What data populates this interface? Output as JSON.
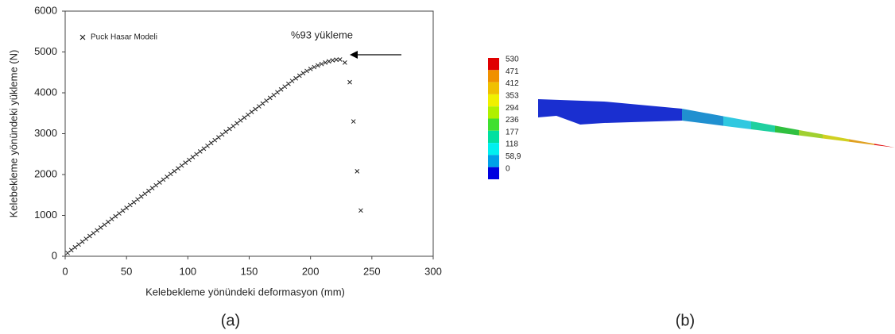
{
  "chart_data": [
    {
      "type": "scatter",
      "caption": "(a)",
      "x_label": "Kelebekleme yönündeki deformasyon (mm)",
      "y_label": "Kelebekleme yönündeki yükleme (N)",
      "annotation": "%93 yükleme",
      "xlim": [
        0,
        300
      ],
      "xticks": [
        0,
        50,
        100,
        150,
        200,
        250,
        300
      ],
      "ylim": [
        0,
        6000
      ],
      "yticks": [
        0,
        1000,
        2000,
        3000,
        4000,
        5000,
        6000
      ],
      "series": [
        {
          "name": "Puck Hasar Modeli",
          "color": "#222222",
          "x": [
            2,
            5,
            8,
            11,
            14,
            17,
            20,
            23,
            26,
            29,
            32,
            35,
            38,
            41,
            44,
            47,
            50,
            53,
            56,
            59,
            62,
            65,
            68,
            71,
            74,
            77,
            80,
            83,
            86,
            89,
            92,
            95,
            98,
            101,
            104,
            107,
            110,
            113,
            116,
            119,
            122,
            125,
            128,
            131,
            134,
            137,
            140,
            143,
            146,
            149,
            152,
            155,
            158,
            161,
            164,
            167,
            170,
            173,
            176,
            179,
            182,
            185,
            188,
            191,
            194,
            197,
            200,
            203,
            206,
            209,
            212,
            215,
            218,
            221,
            224,
            228,
            232,
            235,
            238,
            241
          ],
          "values": [
            81,
            150,
            219,
            288,
            357,
            426,
            495,
            564,
            633,
            702,
            771,
            840,
            909,
            978,
            1047,
            1116,
            1185,
            1254,
            1323,
            1392,
            1461,
            1530,
            1599,
            1668,
            1737,
            1806,
            1875,
            1944,
            2013,
            2082,
            2151,
            2220,
            2289,
            2358,
            2427,
            2496,
            2565,
            2634,
            2703,
            2772,
            2841,
            2910,
            2979,
            3048,
            3117,
            3186,
            3255,
            3324,
            3393,
            3462,
            3531,
            3600,
            3669,
            3738,
            3807,
            3876,
            3945,
            4014,
            4083,
            4152,
            4221,
            4290,
            4355,
            4420,
            4480,
            4535,
            4585,
            4630,
            4670,
            4705,
            4740,
            4770,
            4795,
            4810,
            4815,
            4740,
            4260,
            3300,
            2080,
            1120
          ]
        }
      ]
    },
    {
      "type": "contour",
      "caption": "(b)",
      "levels": [
        530,
        471,
        412,
        353,
        294,
        236,
        177,
        118,
        {
          "value": 58.9,
          "label": "58,9"
        },
        0
      ],
      "colors": [
        "#e00000",
        "#f09000",
        "#f0c000",
        "#f0f000",
        "#b0f000",
        "#40e030",
        "#00e0a0",
        "#00f0f0",
        "#00a0e8",
        "#0000e0"
      ]
    }
  ]
}
